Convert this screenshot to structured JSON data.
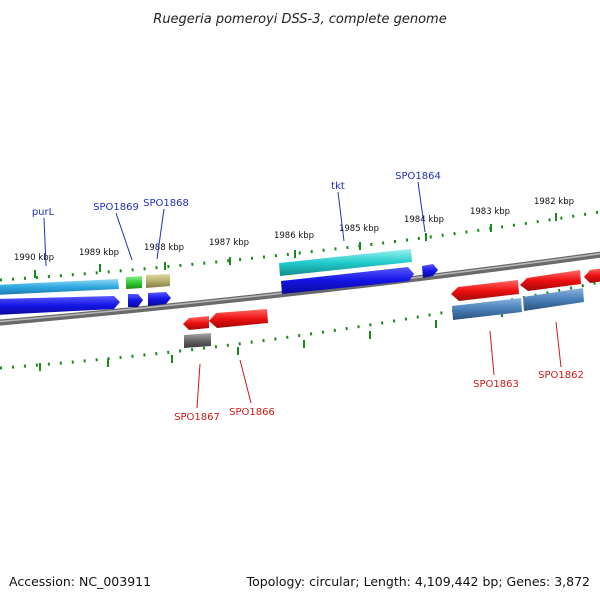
{
  "title": "Ruegeria pomeroyi DSS-3, complete genome",
  "footer": {
    "accession": "Accession: NC_003911",
    "summary": "Topology: circular; Length: 4,109,442 bp; Genes: 3,872"
  },
  "kbp_labels": [
    "1990 kbp",
    "1989 kbp",
    "1988 kbp",
    "1987 kbp",
    "1986 kbp",
    "1985 kbp",
    "1984 kbp",
    "1983 kbp",
    "1982 kbp"
  ],
  "top_labels": [
    "purL",
    "SPO1869",
    "SPO1868",
    "tkt",
    "SPO1864"
  ],
  "bottom_labels": [
    "SPO1867",
    "SPO1866",
    "SPO1863",
    "SPO1862"
  ],
  "colors": {
    "backbone": "#808080",
    "ticks": "#1a8a1a",
    "blue_label": "#1f2fbf",
    "red_label": "#d01818",
    "cds_blue": "#1414e6",
    "cds_red": "#ee1111",
    "cds_cyan": "#22cccc",
    "cds_green": "#33cc33",
    "cds_khaki": "#b8b070",
    "cds_steel": "#4a80b8",
    "cds_gray": "#666666"
  }
}
